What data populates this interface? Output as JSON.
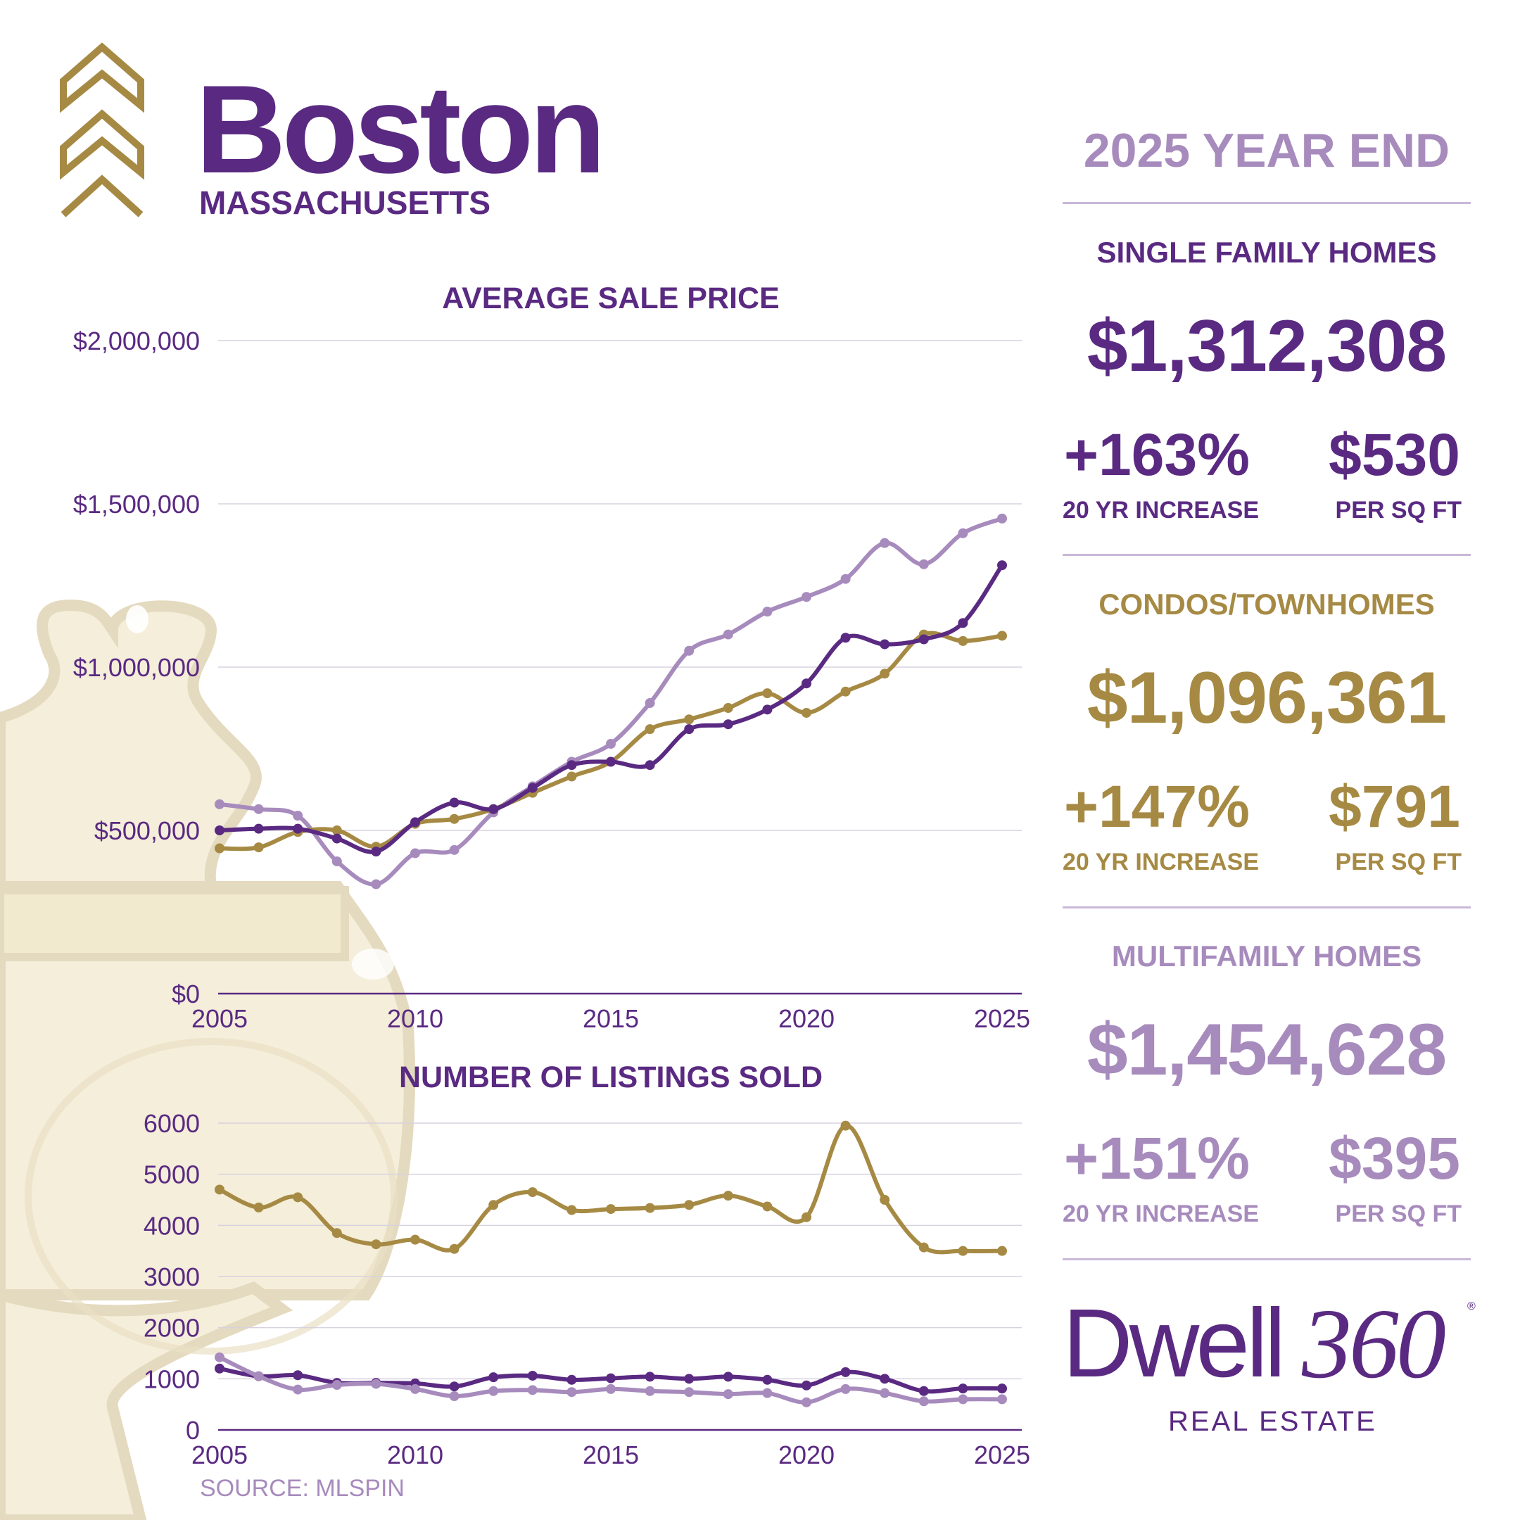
{
  "header": {
    "city": "Boston",
    "state": "MASSACHUSETTS",
    "period": "2025 YEAR END"
  },
  "segments": [
    {
      "category": "SINGLE FAMILY HOMES",
      "avg_price": "$1,312,308",
      "increase": "+163%",
      "increase_label": "20 YR INCREASE",
      "per_sqft": "$530",
      "per_sqft_label": "PER SQ FT",
      "color": "#5a2a82"
    },
    {
      "category": "CONDOS/TOWNHOMES",
      "avg_price": "$1,096,361",
      "increase": "+147%",
      "increase_label": "20 YR INCREASE",
      "per_sqft": "$791",
      "per_sqft_label": "PER SQ FT",
      "color": "#a68a44"
    },
    {
      "category": "MULTIFAMILY HOMES",
      "avg_price": "$1,454,628",
      "increase": "+151%",
      "increase_label": "20 YR INCREASE",
      "per_sqft": "$395",
      "per_sqft_label": "PER SQ FT",
      "color": "#a78bbd"
    }
  ],
  "logo": {
    "word": "Dwell",
    "number": "360",
    "registered": "®",
    "subtitle": "REAL ESTATE"
  },
  "source": "SOURCE: MLSPIN",
  "colors": {
    "purple": "#5a2a82",
    "gold": "#a68a44",
    "lavender": "#a78bbd",
    "grid": "#d8d2e0"
  },
  "chart_data": [
    {
      "type": "line",
      "title": "AVERAGE SALE PRICE",
      "x": [
        2005,
        2006,
        2007,
        2008,
        2009,
        2010,
        2011,
        2012,
        2013,
        2014,
        2015,
        2016,
        2017,
        2018,
        2019,
        2020,
        2021,
        2022,
        2023,
        2024,
        2025
      ],
      "xticks": [
        2005,
        2010,
        2015,
        2020,
        2025
      ],
      "ylim": [
        0,
        2000000
      ],
      "yticks": [
        0,
        500000,
        1000000,
        1500000,
        2000000
      ],
      "ytick_labels": [
        "$0",
        "$500,000",
        "$1,000,000",
        "$1,500,000",
        "$2,000,000"
      ],
      "grid": true,
      "series": [
        {
          "color": "#a78bbd",
          "values": [
            580000,
            565000,
            545000,
            405000,
            335000,
            430000,
            440000,
            555000,
            635000,
            710000,
            765000,
            890000,
            1050000,
            1100000,
            1170000,
            1215000,
            1270000,
            1380000,
            1315000,
            1410000,
            1455000
          ]
        },
        {
          "color": "#a68a44",
          "values": [
            445000,
            448000,
            495000,
            500000,
            450000,
            520000,
            535000,
            565000,
            615000,
            665000,
            710000,
            810000,
            840000,
            875000,
            920000,
            860000,
            925000,
            980000,
            1100000,
            1080000,
            1096000
          ]
        },
        {
          "color": "#5a2a82",
          "values": [
            500000,
            505000,
            505000,
            475000,
            435000,
            525000,
            585000,
            565000,
            630000,
            700000,
            710000,
            700000,
            810000,
            825000,
            870000,
            950000,
            1090000,
            1070000,
            1085000,
            1135000,
            1312000
          ]
        }
      ]
    },
    {
      "type": "line",
      "title": "NUMBER OF LISTINGS SOLD",
      "x": [
        2005,
        2006,
        2007,
        2008,
        2009,
        2010,
        2011,
        2012,
        2013,
        2014,
        2015,
        2016,
        2017,
        2018,
        2019,
        2020,
        2021,
        2022,
        2023,
        2024,
        2025
      ],
      "xticks": [
        2005,
        2010,
        2015,
        2020,
        2025
      ],
      "ylim": [
        0,
        6000
      ],
      "yticks": [
        0,
        1000,
        2000,
        3000,
        4000,
        5000,
        6000
      ],
      "ytick_labels": [
        "0",
        "1000",
        "2000",
        "3000",
        "4000",
        "5000",
        "6000"
      ],
      "grid": true,
      "series": [
        {
          "color": "#a68a44",
          "values": [
            4700,
            4350,
            4550,
            3850,
            3630,
            3720,
            3540,
            4400,
            4650,
            4300,
            4320,
            4340,
            4400,
            4580,
            4370,
            4160,
            5950,
            4500,
            3570,
            3500,
            3500
          ]
        },
        {
          "color": "#5a2a82",
          "values": [
            1200,
            1050,
            1070,
            920,
            920,
            910,
            850,
            1030,
            1060,
            980,
            1010,
            1040,
            1000,
            1040,
            980,
            870,
            1130,
            1000,
            760,
            810,
            810
          ]
        },
        {
          "color": "#a78bbd",
          "values": [
            1420,
            1050,
            790,
            880,
            900,
            800,
            660,
            760,
            780,
            740,
            800,
            760,
            740,
            700,
            720,
            540,
            800,
            720,
            560,
            600,
            600
          ]
        }
      ]
    }
  ]
}
